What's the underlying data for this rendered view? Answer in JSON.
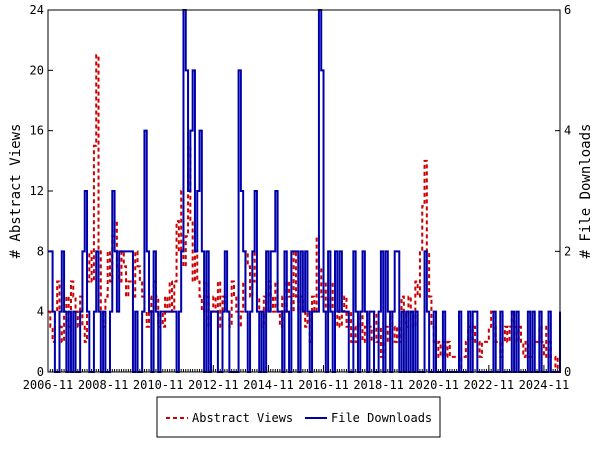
{
  "chart_data": {
    "type": "line",
    "ylabel": "# Abstract Views",
    "y2label": "# File Downloads",
    "ylim": [
      0,
      24
    ],
    "y2lim": [
      0,
      6
    ],
    "yticks": [
      "0",
      "4",
      "8",
      "12",
      "16",
      "20",
      "24"
    ],
    "y2ticks": [
      "0",
      "2",
      "4",
      "6"
    ],
    "x_start": "2006-11",
    "x_end": "2025-06",
    "xticks": [
      "2006-11",
      "2008-11",
      "2010-11",
      "2012-11",
      "2014-11",
      "2016-11",
      "2018-11",
      "2020-11",
      "2022-11",
      "2024-11"
    ],
    "legend_position": "bottom-center",
    "series": [
      {
        "name": "Abstract Views",
        "axis": "left",
        "color": "#cc0000",
        "dash": "dashed",
        "values": [
          4,
          3,
          2,
          4,
          6,
          3,
          2,
          4,
          5,
          3,
          6,
          5,
          4,
          3,
          5,
          3,
          2,
          6,
          8,
          6,
          15,
          21,
          8,
          4,
          3,
          5,
          8,
          6,
          9,
          10,
          7,
          6,
          8,
          7,
          5,
          6,
          6,
          5,
          8,
          7,
          6,
          5,
          4,
          3,
          5,
          4,
          6,
          5,
          3,
          4,
          3,
          5,
          4,
          6,
          4,
          6,
          10,
          8,
          12,
          7,
          9,
          15,
          10,
          6,
          8,
          6,
          5,
          4,
          6,
          5,
          3,
          4,
          5,
          4,
          6,
          3,
          5,
          4,
          4,
          3,
          6,
          5,
          4,
          3,
          4,
          6,
          8,
          7,
          5,
          6,
          8,
          5,
          4,
          3,
          5,
          4,
          6,
          5,
          4,
          6,
          4,
          3,
          5,
          4,
          6,
          5,
          4,
          8,
          5,
          4,
          5,
          4,
          3,
          4,
          2,
          5,
          4,
          9,
          7,
          5,
          6,
          4,
          5,
          4,
          6,
          3,
          4,
          3,
          4,
          5,
          3,
          4,
          2,
          3,
          2,
          3,
          4,
          2,
          3,
          4,
          3,
          2,
          4,
          2,
          3,
          1,
          2,
          3,
          2,
          4,
          3,
          2,
          3,
          2,
          5,
          4,
          3,
          5,
          4,
          3,
          6,
          5,
          8,
          11,
          14,
          8,
          5,
          3,
          2,
          1,
          2,
          1,
          2,
          1,
          2,
          1,
          1,
          1,
          1,
          0,
          1,
          1,
          2,
          3,
          2,
          3,
          2,
          2,
          1,
          2,
          2,
          2,
          3,
          4,
          3,
          2,
          2,
          1,
          2,
          3,
          2,
          3,
          4,
          3,
          2,
          3,
          2,
          1,
          2,
          1,
          1,
          2,
          2,
          2,
          3,
          2,
          1,
          3,
          2,
          1,
          1,
          0,
          1,
          0,
          1,
          0,
          0,
          1,
          0,
          0,
          0,
          0,
          0,
          0,
          0,
          0,
          0,
          0,
          0,
          0,
          0,
          1,
          0,
          0,
          0,
          1,
          1,
          0,
          1,
          0,
          0,
          1,
          0,
          0,
          1,
          0,
          1
        ]
      },
      {
        "name": "File Downloads",
        "axis": "right",
        "color": "#0000aa",
        "dash": "solid",
        "values": [
          2,
          2,
          1,
          0,
          0,
          1,
          2,
          1,
          0,
          1,
          0,
          1,
          0,
          0,
          1,
          2,
          3,
          1,
          0,
          0,
          1,
          2,
          1,
          0,
          1,
          0,
          0,
          1,
          3,
          2,
          1,
          2,
          2,
          2,
          2,
          2,
          2,
          0,
          1,
          0,
          0,
          1,
          4,
          2,
          1,
          0,
          2,
          1,
          0,
          1,
          1,
          1,
          1,
          1,
          1,
          1,
          0,
          1,
          2,
          6,
          5,
          3,
          4,
          5,
          2,
          3,
          4,
          2,
          0,
          2,
          0,
          1,
          1,
          1,
          0,
          0,
          1,
          2,
          1,
          0,
          0,
          0,
          0,
          5,
          3,
          2,
          1,
          0,
          1,
          2,
          3,
          1,
          0,
          1,
          0,
          2,
          1,
          2,
          2,
          3,
          1,
          1,
          0,
          2,
          1,
          0,
          2,
          2,
          2,
          0,
          2,
          1,
          2,
          1,
          0,
          1,
          1,
          1,
          6,
          5,
          1,
          0,
          2,
          1,
          0,
          2,
          1,
          2,
          1,
          1,
          1,
          0,
          0,
          2,
          1,
          0,
          1,
          2,
          1,
          0,
          1,
          1,
          0,
          0,
          1,
          2,
          0,
          2,
          1,
          0,
          1,
          2,
          2,
          0,
          1,
          0,
          1,
          0,
          1,
          0,
          1,
          0,
          0,
          0,
          2,
          1,
          0,
          0,
          1,
          0,
          0,
          0,
          1,
          0,
          0,
          0,
          0,
          0,
          0,
          1,
          0,
          0,
          0,
          1,
          0,
          1,
          1,
          0,
          0,
          0,
          0,
          0,
          0,
          0,
          1,
          0,
          0,
          1,
          0,
          0,
          0,
          0,
          1,
          0,
          1,
          0,
          0,
          0,
          0,
          1,
          0,
          1,
          0,
          0,
          1,
          0,
          0,
          0,
          1,
          0,
          0,
          0,
          0,
          0,
          0,
          0,
          0,
          0,
          0,
          0,
          0,
          0,
          0,
          0,
          1,
          1,
          0,
          0,
          0,
          0,
          0,
          0,
          0,
          0,
          0,
          0,
          0,
          0,
          0,
          0,
          0,
          0,
          0,
          0,
          0,
          0
        ]
      }
    ]
  }
}
